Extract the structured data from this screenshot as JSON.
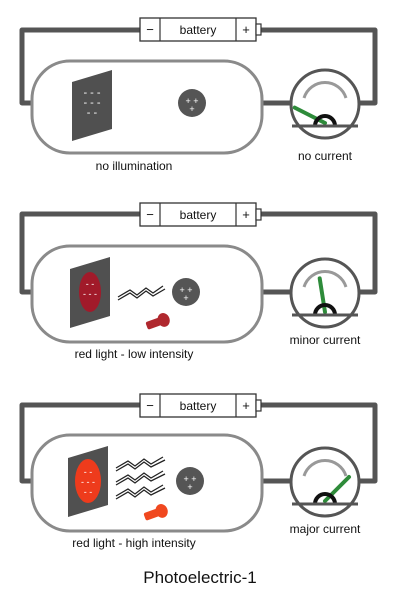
{
  "title": "Photoelectric-1",
  "colors": {
    "wire": "#555555",
    "tube": "#8a8a8a",
    "plate": "#505050",
    "collector": "#555555",
    "needle": "#2e8b3a",
    "red_low": "#a11a2a",
    "red_high": "#ee3b1c",
    "red_low_bulb": "#b0282e",
    "red_high_bulb": "#f0481f"
  },
  "panels": [
    {
      "battery_label": "battery",
      "neg_sign": "−",
      "pos_sign": "+",
      "illumination_caption": "no illumination",
      "current_caption": "no current",
      "light": "none",
      "photon_arrows": 0,
      "meter_level": 0.15
    },
    {
      "battery_label": "battery",
      "neg_sign": "−",
      "pos_sign": "+",
      "illumination_caption": "red light - low intensity",
      "current_caption": "minor current",
      "light": "red_low",
      "photon_arrows": 1,
      "meter_level": 0.45
    },
    {
      "battery_label": "battery",
      "neg_sign": "−",
      "pos_sign": "+",
      "illumination_caption": "red light - high intensity",
      "current_caption": "major current",
      "light": "red_high",
      "photon_arrows": 3,
      "meter_level": 0.75
    }
  ]
}
